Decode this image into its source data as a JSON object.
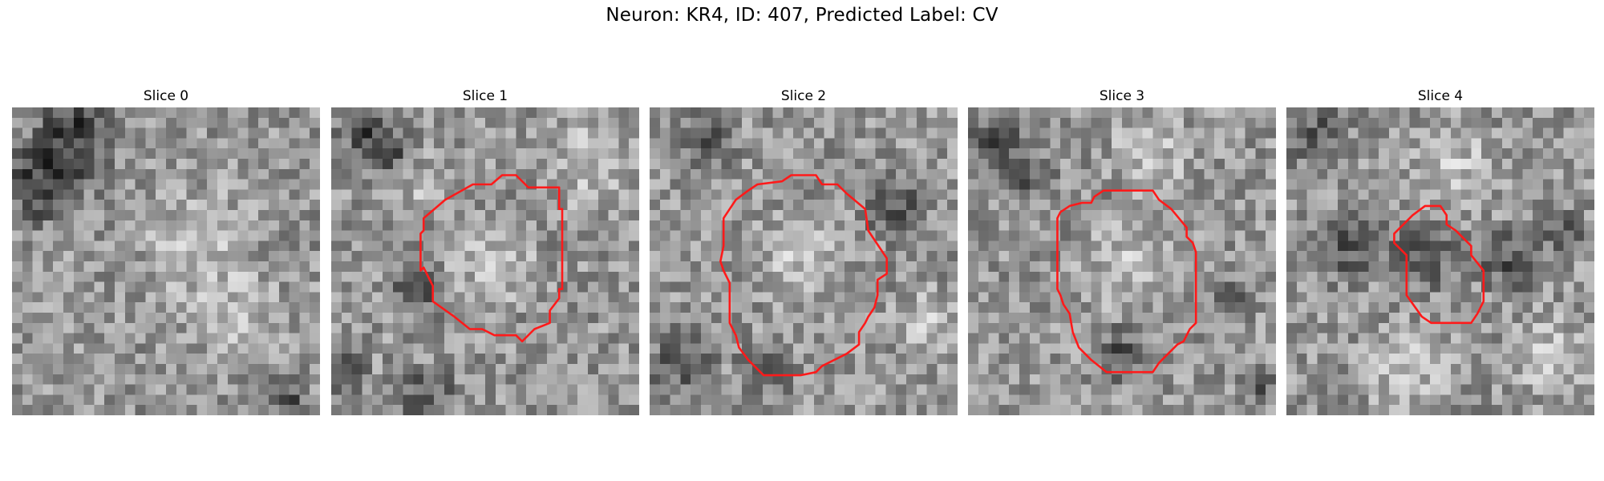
{
  "figure": {
    "title": "Neuron: KR4, ID: 407, Predicted Label: CV"
  },
  "colors": {
    "contour": "#ff1a1a",
    "background": "#ffffff"
  },
  "panels": [
    {
      "title": "Slice 0",
      "seed": 11,
      "has_contour": false,
      "dark_regions": [
        [
          0.22,
          0.06,
          0.18
        ],
        [
          0.08,
          0.28,
          0.16
        ],
        [
          0.15,
          0.18,
          0.2
        ],
        [
          0.9,
          0.95,
          0.1
        ]
      ],
      "bright_regions": [
        [
          0.6,
          0.45,
          0.25
        ],
        [
          0.75,
          0.7,
          0.2
        ]
      ]
    },
    {
      "title": "Slice 1",
      "seed": 23,
      "has_contour": true,
      "contour": [
        [
          0.555,
          0.22
        ],
        [
          0.6,
          0.22
        ],
        [
          0.64,
          0.26
        ],
        [
          0.74,
          0.26
        ],
        [
          0.74,
          0.33
        ],
        [
          0.75,
          0.33
        ],
        [
          0.75,
          0.59
        ],
        [
          0.74,
          0.59
        ],
        [
          0.74,
          0.62
        ],
        [
          0.71,
          0.66
        ],
        [
          0.71,
          0.7
        ],
        [
          0.66,
          0.72
        ],
        [
          0.62,
          0.76
        ],
        [
          0.6,
          0.74
        ],
        [
          0.53,
          0.74
        ],
        [
          0.49,
          0.72
        ],
        [
          0.45,
          0.72
        ],
        [
          0.4,
          0.68
        ],
        [
          0.33,
          0.63
        ],
        [
          0.33,
          0.58
        ],
        [
          0.3,
          0.52
        ],
        [
          0.29,
          0.53
        ],
        [
          0.29,
          0.41
        ],
        [
          0.3,
          0.4
        ],
        [
          0.3,
          0.36
        ],
        [
          0.37,
          0.3
        ],
        [
          0.46,
          0.25
        ],
        [
          0.52,
          0.25
        ]
      ],
      "dark_regions": [
        [
          0.12,
          0.08,
          0.14
        ],
        [
          0.18,
          0.16,
          0.12
        ],
        [
          0.28,
          0.6,
          0.12
        ],
        [
          0.3,
          0.95,
          0.15
        ],
        [
          0.05,
          0.85,
          0.1
        ]
      ],
      "bright_regions": [
        [
          0.52,
          0.5,
          0.2
        ],
        [
          0.85,
          0.18,
          0.22
        ],
        [
          0.3,
          0.25,
          0.12
        ]
      ]
    },
    {
      "title": "Slice 2",
      "seed": 37,
      "has_contour": true,
      "contour": [
        [
          0.43,
          0.24
        ],
        [
          0.46,
          0.22
        ],
        [
          0.54,
          0.22
        ],
        [
          0.56,
          0.25
        ],
        [
          0.61,
          0.25
        ],
        [
          0.63,
          0.27
        ],
        [
          0.64,
          0.28
        ],
        [
          0.7,
          0.33
        ],
        [
          0.71,
          0.4
        ],
        [
          0.77,
          0.49
        ],
        [
          0.77,
          0.54
        ],
        [
          0.74,
          0.56
        ],
        [
          0.74,
          0.61
        ],
        [
          0.73,
          0.65
        ],
        [
          0.71,
          0.68
        ],
        [
          0.7,
          0.7
        ],
        [
          0.68,
          0.73
        ],
        [
          0.68,
          0.77
        ],
        [
          0.64,
          0.8
        ],
        [
          0.56,
          0.84
        ],
        [
          0.54,
          0.86
        ],
        [
          0.49,
          0.87
        ],
        [
          0.37,
          0.87
        ],
        [
          0.32,
          0.82
        ],
        [
          0.29,
          0.78
        ],
        [
          0.28,
          0.74
        ],
        [
          0.26,
          0.7
        ],
        [
          0.26,
          0.57
        ],
        [
          0.24,
          0.53
        ],
        [
          0.23,
          0.5
        ],
        [
          0.24,
          0.45
        ],
        [
          0.24,
          0.36
        ],
        [
          0.28,
          0.3
        ],
        [
          0.32,
          0.27
        ],
        [
          0.35,
          0.25
        ]
      ],
      "dark_regions": [
        [
          0.8,
          0.33,
          0.14
        ],
        [
          0.1,
          0.82,
          0.15
        ],
        [
          0.38,
          0.85,
          0.12
        ],
        [
          0.2,
          0.1,
          0.12
        ]
      ],
      "bright_regions": [
        [
          0.48,
          0.5,
          0.2
        ],
        [
          0.9,
          0.7,
          0.15
        ]
      ]
    },
    {
      "title": "Slice 3",
      "seed": 51,
      "has_contour": true,
      "contour": [
        [
          0.41,
          0.29
        ],
        [
          0.44,
          0.27
        ],
        [
          0.6,
          0.27
        ],
        [
          0.62,
          0.3
        ],
        [
          0.66,
          0.33
        ],
        [
          0.71,
          0.39
        ],
        [
          0.71,
          0.42
        ],
        [
          0.73,
          0.44
        ],
        [
          0.74,
          0.47
        ],
        [
          0.74,
          0.7
        ],
        [
          0.72,
          0.72
        ],
        [
          0.7,
          0.76
        ],
        [
          0.68,
          0.77
        ],
        [
          0.62,
          0.83
        ],
        [
          0.6,
          0.86
        ],
        [
          0.45,
          0.86
        ],
        [
          0.4,
          0.82
        ],
        [
          0.36,
          0.78
        ],
        [
          0.34,
          0.73
        ],
        [
          0.33,
          0.67
        ],
        [
          0.31,
          0.64
        ],
        [
          0.3,
          0.61
        ],
        [
          0.29,
          0.59
        ],
        [
          0.29,
          0.36
        ],
        [
          0.3,
          0.34
        ],
        [
          0.33,
          0.32
        ],
        [
          0.37,
          0.31
        ],
        [
          0.4,
          0.31
        ]
      ],
      "dark_regions": [
        [
          0.08,
          0.12,
          0.16
        ],
        [
          0.2,
          0.22,
          0.1
        ],
        [
          0.85,
          0.62,
          0.1
        ],
        [
          0.5,
          0.8,
          0.12
        ],
        [
          0.95,
          0.92,
          0.08
        ]
      ],
      "bright_regions": [
        [
          0.52,
          0.52,
          0.2
        ],
        [
          0.6,
          0.15,
          0.18
        ]
      ]
    },
    {
      "title": "Slice 4",
      "seed": 67,
      "has_contour": true,
      "contour": [
        [
          0.41,
          0.35
        ],
        [
          0.45,
          0.32
        ],
        [
          0.5,
          0.32
        ],
        [
          0.52,
          0.35
        ],
        [
          0.52,
          0.38
        ],
        [
          0.55,
          0.4
        ],
        [
          0.57,
          0.42
        ],
        [
          0.6,
          0.45
        ],
        [
          0.6,
          0.48
        ],
        [
          0.64,
          0.53
        ],
        [
          0.64,
          0.63
        ],
        [
          0.62,
          0.67
        ],
        [
          0.6,
          0.7
        ],
        [
          0.54,
          0.7
        ],
        [
          0.47,
          0.7
        ],
        [
          0.44,
          0.68
        ],
        [
          0.39,
          0.61
        ],
        [
          0.39,
          0.48
        ],
        [
          0.35,
          0.44
        ],
        [
          0.35,
          0.41
        ]
      ],
      "dark_regions": [
        [
          0.1,
          0.1,
          0.14
        ],
        [
          0.2,
          0.45,
          0.16
        ],
        [
          0.45,
          0.47,
          0.16
        ],
        [
          0.72,
          0.5,
          0.14
        ],
        [
          0.9,
          0.42,
          0.1
        ]
      ],
      "bright_regions": [
        [
          0.55,
          0.2,
          0.2
        ],
        [
          0.4,
          0.85,
          0.2
        ],
        [
          0.85,
          0.8,
          0.18
        ]
      ]
    }
  ]
}
